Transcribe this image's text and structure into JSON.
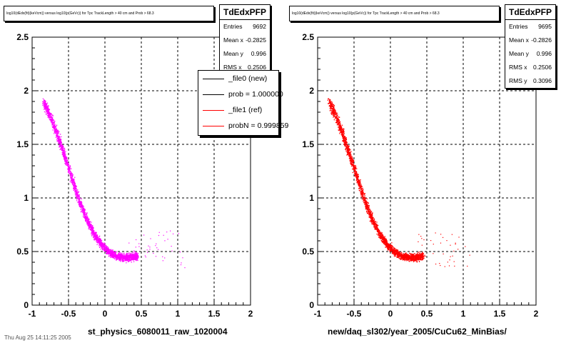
{
  "chart_data": [
    {
      "type": "scatter",
      "title": "log10(dEdx(fit)(keVcm)) versus log10(p(GeVc)) for Tpc TrackLength > 40 cm and Prob > 68.3",
      "xlabel": "st_physics_6080011_raw_1020004",
      "ylabel": "",
      "xlim": [
        -1,
        2
      ],
      "ylim": [
        0,
        2.5
      ],
      "xticks": [
        "-1",
        "-0.5",
        "0",
        "0.5",
        "1",
        "1.5",
        "2"
      ],
      "yticks": [
        "0",
        "0.5",
        "1",
        "1.5",
        "2",
        "2.5"
      ],
      "grid": true,
      "marker_color": "#ff00ff",
      "band": [
        {
          "x": -0.85,
          "y": 1.9
        },
        {
          "x": -0.75,
          "y": 1.76
        },
        {
          "x": -0.65,
          "y": 1.58
        },
        {
          "x": -0.55,
          "y": 1.38
        },
        {
          "x": -0.45,
          "y": 1.17
        },
        {
          "x": -0.35,
          "y": 0.96
        },
        {
          "x": -0.25,
          "y": 0.8
        },
        {
          "x": -0.15,
          "y": 0.66
        },
        {
          "x": -0.05,
          "y": 0.57
        },
        {
          "x": 0.05,
          "y": 0.5
        },
        {
          "x": 0.15,
          "y": 0.46
        },
        {
          "x": 0.25,
          "y": 0.45
        },
        {
          "x": 0.35,
          "y": 0.45
        },
        {
          "x": 0.45,
          "y": 0.46
        }
      ],
      "stats": {
        "name": "TdEdxPFP",
        "rows": [
          {
            "label": "Entries",
            "value": "9692"
          },
          {
            "label": "Mean x",
            "value": "-0.2825"
          },
          {
            "label": "Mean y",
            "value": "0.996"
          },
          {
            "label": "RMS x",
            "value": "0.2506"
          }
        ]
      },
      "legend": {
        "entries": [
          {
            "label": "_file0 (new)",
            "color": "#000000"
          },
          {
            "label": "prob = 1.000000",
            "color": "#000000"
          },
          {
            "label": "_file1 (ref)",
            "color": "#ff0000"
          },
          {
            "label": "probN = 0.999859",
            "color": "#ff0000"
          }
        ]
      }
    },
    {
      "type": "scatter",
      "title": "log10(dEdx(fit)(keVcm)) versus log10(p(GeVc)) for Tpc TrackLength > 40 cm and Prob > 68.3",
      "xlabel": "new/daq_sl302/year_2005/CuCu62_MinBias/",
      "ylabel": "",
      "xlim": [
        -1,
        2
      ],
      "ylim": [
        0,
        2.5
      ],
      "xticks": [
        "-1",
        "-0.5",
        "0",
        "0.5",
        "1",
        "1.5",
        "2"
      ],
      "yticks": [
        "0",
        "0.5",
        "1",
        "1.5",
        "2",
        "2.5"
      ],
      "grid": true,
      "marker_color": "#ff0000",
      "band": [
        {
          "x": -0.85,
          "y": 1.9
        },
        {
          "x": -0.75,
          "y": 1.76
        },
        {
          "x": -0.65,
          "y": 1.58
        },
        {
          "x": -0.55,
          "y": 1.38
        },
        {
          "x": -0.45,
          "y": 1.17
        },
        {
          "x": -0.35,
          "y": 0.96
        },
        {
          "x": -0.25,
          "y": 0.8
        },
        {
          "x": -0.15,
          "y": 0.66
        },
        {
          "x": -0.05,
          "y": 0.57
        },
        {
          "x": 0.05,
          "y": 0.5
        },
        {
          "x": 0.15,
          "y": 0.46
        },
        {
          "x": 0.25,
          "y": 0.45
        },
        {
          "x": 0.35,
          "y": 0.45
        },
        {
          "x": 0.45,
          "y": 0.46
        }
      ],
      "stats": {
        "name": "TdEdxPFP",
        "rows": [
          {
            "label": "Entries",
            "value": "9695"
          },
          {
            "label": "Mean x",
            "value": "-0.2826"
          },
          {
            "label": "Mean y",
            "value": "0.996"
          },
          {
            "label": "RMS x",
            "value": "0.2506"
          },
          {
            "label": "RMS y",
            "value": "0.3096"
          }
        ]
      }
    }
  ],
  "footer": "Thu Aug 25 14:11:25 2005"
}
